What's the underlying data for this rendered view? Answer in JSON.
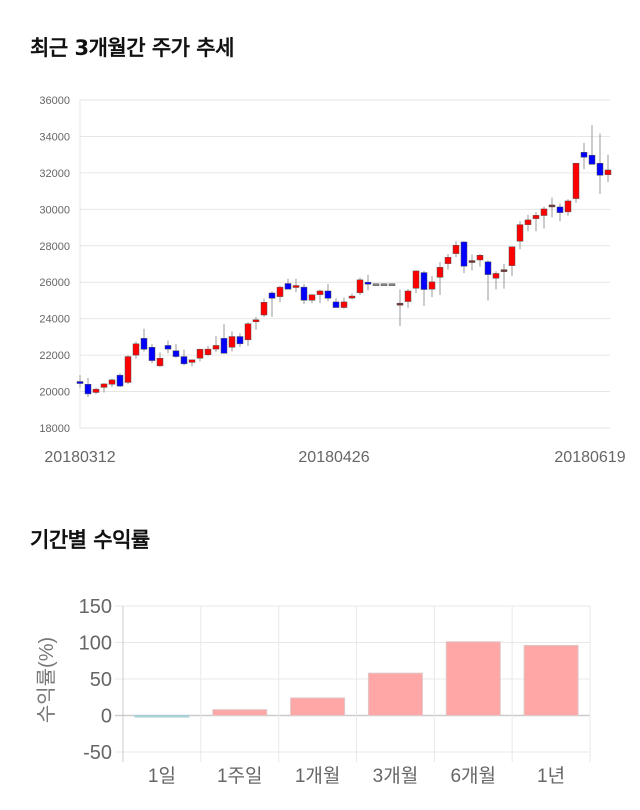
{
  "chart_data": [
    {
      "type": "candlestick",
      "title": "최근 3개월간 주가 추세",
      "ylim": [
        18000,
        36000
      ],
      "yticks": [
        18000,
        20000,
        22000,
        24000,
        26000,
        28000,
        30000,
        32000,
        34000,
        36000
      ],
      "xtick_labels": [
        {
          "index": 0,
          "label": "20180312"
        },
        {
          "index": 32,
          "label": "20180426"
        },
        {
          "index": 64,
          "label": "20180619"
        }
      ],
      "colors": {
        "up": "#ff0000",
        "down": "#0000ff",
        "wick": "#999999",
        "grid": "#e6e6e6"
      },
      "ohlc_fields": [
        "open",
        "high",
        "low",
        "close"
      ],
      "candles": [
        [
          20550,
          20900,
          20200,
          20450
        ],
        [
          20400,
          20750,
          19700,
          19870
        ],
        [
          19950,
          20200,
          19850,
          20130
        ],
        [
          20230,
          20450,
          19950,
          20420
        ],
        [
          20400,
          20700,
          20250,
          20640
        ],
        [
          20900,
          21000,
          20250,
          20300
        ],
        [
          20500,
          22000,
          20400,
          21920
        ],
        [
          22000,
          22750,
          21800,
          22620
        ],
        [
          22920,
          23450,
          22200,
          22320
        ],
        [
          22430,
          22600,
          21550,
          21700
        ],
        [
          21410,
          22150,
          21350,
          21830
        ],
        [
          22530,
          22800,
          22100,
          22330
        ],
        [
          22240,
          22600,
          21850,
          21920
        ],
        [
          21920,
          22300,
          21450,
          21520
        ],
        [
          21600,
          21750,
          21380,
          21740
        ],
        [
          21830,
          22350,
          21650,
          22320
        ],
        [
          22020,
          22500,
          21950,
          22330
        ],
        [
          22330,
          23050,
          22150,
          22530
        ],
        [
          22920,
          23700,
          22100,
          22100
        ],
        [
          22430,
          23300,
          22200,
          23020
        ],
        [
          23020,
          23200,
          22450,
          22620
        ],
        [
          22840,
          23800,
          22500,
          23720
        ],
        [
          23830,
          24100,
          23400,
          23940
        ],
        [
          24200,
          25100,
          24100,
          24900
        ],
        [
          25410,
          25500,
          24100,
          25120
        ],
        [
          25210,
          25800,
          24900,
          25730
        ],
        [
          25930,
          26200,
          25700,
          25620
        ],
        [
          25730,
          26200,
          25450,
          25820
        ],
        [
          25730,
          25900,
          24800,
          25010
        ],
        [
          25010,
          25350,
          24850,
          25310
        ],
        [
          25320,
          25600,
          24850,
          25520
        ],
        [
          25520,
          25900,
          24950,
          25120
        ],
        [
          24920,
          25130,
          24620,
          24610
        ],
        [
          24610,
          25150,
          24550,
          24920
        ],
        [
          25130,
          25380,
          25050,
          25240
        ],
        [
          25420,
          26250,
          25300,
          26130
        ],
        [
          26000,
          26400,
          25550,
          25910
        ],
        [
          25920,
          25920,
          25920,
          25920
        ],
        [
          25920,
          25920,
          25920,
          25920
        ],
        [
          25920,
          25920,
          25920,
          25920
        ],
        [
          24850,
          25600,
          23600,
          24850
        ],
        [
          24940,
          25620,
          24600,
          25520
        ],
        [
          25670,
          26650,
          25400,
          26620
        ],
        [
          26530,
          26620,
          24700,
          25600
        ],
        [
          25620,
          26350,
          25180,
          26020
        ],
        [
          26270,
          27100,
          25300,
          26820
        ],
        [
          27020,
          27550,
          26700,
          27370
        ],
        [
          27570,
          28250,
          27370,
          28030
        ],
        [
          28210,
          28250,
          26500,
          26880
        ],
        [
          27190,
          27520,
          26650,
          27190
        ],
        [
          27220,
          27550,
          26850,
          27480
        ],
        [
          27120,
          27200,
          25000,
          26420
        ],
        [
          26220,
          26600,
          25600,
          26480
        ],
        [
          26690,
          27000,
          25650,
          26690
        ],
        [
          26910,
          27970,
          26330,
          27940
        ],
        [
          28250,
          29350,
          27800,
          29160
        ],
        [
          29160,
          29700,
          28800,
          29420
        ],
        [
          29490,
          29850,
          28800,
          29670
        ],
        [
          29660,
          30150,
          28950,
          30020
        ],
        [
          30240,
          30650,
          29560,
          30240
        ],
        [
          30130,
          30320,
          29340,
          29820
        ],
        [
          29860,
          30550,
          29650,
          30460
        ],
        [
          30590,
          32550,
          30360,
          32530
        ],
        [
          33130,
          33650,
          32200,
          32860
        ],
        [
          32970,
          34620,
          32470,
          32470
        ],
        [
          32530,
          34160,
          30850,
          31870
        ],
        [
          31900,
          33000,
          31500,
          32160
        ]
      ]
    },
    {
      "type": "bar",
      "title": "기간별 수익률",
      "ylabel": "수익률(%)",
      "xlabel": "",
      "ylim": [
        -50,
        150
      ],
      "yticks": [
        -50,
        0,
        50,
        100,
        150
      ],
      "categories": [
        "1일",
        "1주일",
        "1개월",
        "3개월",
        "6개월",
        "1년"
      ],
      "values": [
        -0.5,
        8,
        24,
        58,
        101,
        96
      ],
      "colors": {
        "positive": "#ffa6a6",
        "negative": "#a6cfd6",
        "border": "#e0c8c8"
      }
    }
  ]
}
